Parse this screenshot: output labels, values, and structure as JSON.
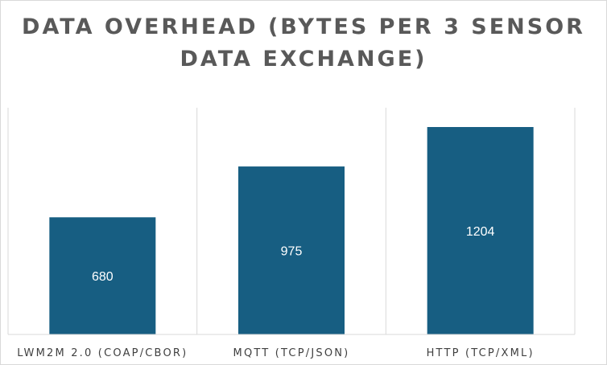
{
  "chart_data": {
    "type": "bar",
    "title": "DATA OVERHEAD (BYTES PER 3 SENSOR DATA EXCHANGE)",
    "categories": [
      "LWM2M 2.0 (COAP/CBOR)",
      "MQTT (TCP/JSON)",
      "HTTP (TCP/XML)"
    ],
    "values": [
      680,
      975,
      1204
    ],
    "xlabel": "",
    "ylabel": "",
    "ylim": [
      0,
      1400
    ],
    "grid": "vertical category separators",
    "legend": "none",
    "color": "#175e82"
  }
}
